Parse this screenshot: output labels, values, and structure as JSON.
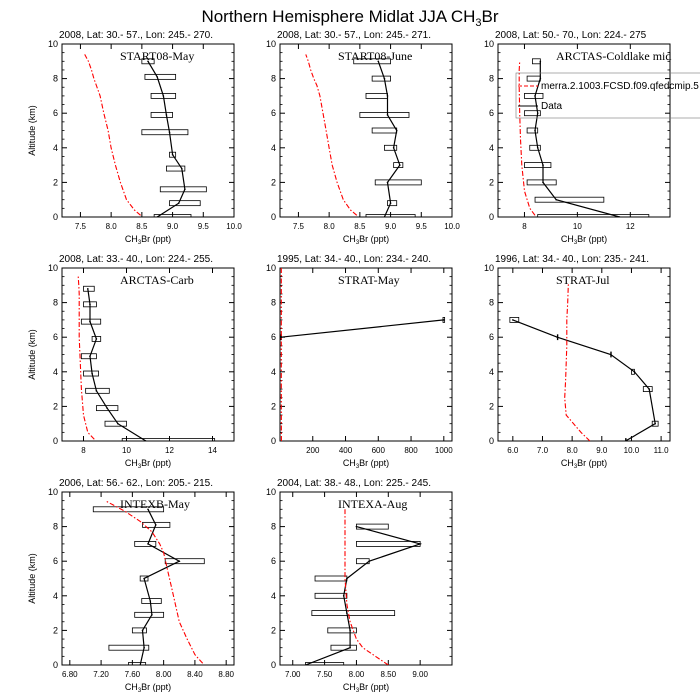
{
  "page": {
    "title_main": "Northern Hemisphere Midlat JJA CH",
    "title_sub": "3",
    "title_end": "Br"
  },
  "colors": {
    "obs": "#000000",
    "model": "#ff0000"
  },
  "common": {
    "ylabel": "Altitude (km)",
    "xlabel_pre": "CH",
    "xlabel_sub": "3",
    "xlabel_post": "Br (ppt)"
  },
  "chart_data": [
    {
      "type": "line",
      "header": "2008, Lat:  30.- 57., Lon: 245.- 270.",
      "inset_title": "START08-May",
      "xlim": [
        7.2,
        10.0
      ],
      "xticks": [
        7.5,
        8.0,
        8.5,
        9.0,
        9.5,
        10.0
      ],
      "xtick_labels": [
        "7.5",
        "8.0",
        "8.5",
        "9.0",
        "9.5",
        "10.0"
      ],
      "ylim": [
        0,
        10
      ],
      "yticks": [
        0,
        2,
        4,
        6,
        8,
        10
      ],
      "model": {
        "x": [
          8.48,
          8.38,
          8.25,
          8.15,
          8.07,
          8.0,
          7.95,
          7.88,
          7.82,
          7.76,
          7.72,
          7.68,
          7.63,
          7.57
        ],
        "y": [
          0.1,
          0.4,
          1.0,
          2.0,
          3.0,
          4.0,
          5.0,
          6.0,
          7.0,
          7.6,
          8.0,
          8.5,
          9.0,
          9.4
        ]
      },
      "obs": {
        "alt": [
          0,
          0.8,
          1.6,
          2.8,
          3.6,
          4.9,
          5.9,
          7.0,
          8.1,
          9.0
        ],
        "mean": [
          8.75,
          9.1,
          9.2,
          9.15,
          9.0,
          8.95,
          8.9,
          8.85,
          8.75,
          8.6
        ],
        "lo": [
          8.7,
          8.95,
          8.8,
          8.9,
          8.95,
          8.5,
          8.65,
          8.65,
          8.55,
          8.5
        ],
        "hi": [
          9.3,
          9.45,
          9.55,
          9.2,
          9.05,
          9.25,
          9.0,
          9.05,
          9.05,
          8.7
        ]
      }
    },
    {
      "type": "line",
      "header": "2008, Lat:  30.- 57., Lon: 245.- 271.",
      "inset_title": "START08-June",
      "xlim": [
        7.2,
        10.0
      ],
      "xticks": [
        7.5,
        8.0,
        8.5,
        9.0,
        9.5,
        10.0
      ],
      "xtick_labels": [
        "7.5",
        "8.0",
        "8.5",
        "9.0",
        "9.5",
        "10.0"
      ],
      "ylim": [
        0,
        10
      ],
      "yticks": [
        0,
        2,
        4,
        6,
        8,
        10
      ],
      "model": {
        "x": [
          8.45,
          8.35,
          8.23,
          8.13,
          8.05,
          8.0,
          7.95,
          7.9,
          7.85,
          7.8,
          7.75,
          7.7,
          7.66,
          7.62
        ],
        "y": [
          0.1,
          0.4,
          1.0,
          2.0,
          3.0,
          4.0,
          5.0,
          6.0,
          7.0,
          7.6,
          8.0,
          8.5,
          9.0,
          9.4
        ]
      },
      "obs": {
        "alt": [
          0,
          0.8,
          2.0,
          3.0,
          4.0,
          5.0,
          5.9,
          7.0,
          8.0,
          9.0
        ],
        "mean": [
          8.9,
          9.0,
          8.95,
          9.15,
          9.05,
          9.1,
          8.95,
          8.95,
          8.9,
          8.8
        ],
        "lo": [
          8.6,
          8.95,
          8.75,
          9.05,
          8.9,
          8.7,
          8.5,
          8.6,
          8.7,
          8.4
        ],
        "hi": [
          9.4,
          9.1,
          9.5,
          9.2,
          9.1,
          9.1,
          9.3,
          8.95,
          9.0,
          9.0
        ]
      }
    },
    {
      "type": "line",
      "header": "2008, Lat:  50.- 70., Lon: 224.- 275",
      "inset_title": "ARCTAS-Coldlake mid",
      "xlim": [
        7.0,
        13.5
      ],
      "xticks": [
        8,
        10,
        12
      ],
      "xtick_labels": [
        "8",
        "10",
        "12"
      ],
      "ylim": [
        0,
        10
      ],
      "yticks": [
        0,
        2,
        4,
        6,
        8,
        10
      ],
      "legend": {
        "model_label": "merra.2.1003.FCSD.f09.qfedcmip.5",
        "obs_label": "Data"
      },
      "model": {
        "x": [
          8.4,
          8.2,
          8.0,
          7.9,
          7.85,
          7.82,
          7.8,
          7.8,
          7.8,
          7.82
        ],
        "y": [
          0.1,
          0.5,
          1.5,
          3.0,
          4.5,
          6.0,
          7.5,
          8.0,
          8.5,
          9.0
        ]
      },
      "obs": {
        "alt": [
          0,
          1,
          2,
          3,
          4,
          5,
          6,
          7,
          8,
          9
        ],
        "mean": [
          11.6,
          9.2,
          8.7,
          8.7,
          8.5,
          8.4,
          8.5,
          8.4,
          8.6,
          8.6
        ],
        "lo": [
          8.5,
          8.4,
          8.1,
          8.0,
          8.2,
          8.1,
          8.0,
          8.0,
          8.1,
          8.3
        ],
        "hi": [
          12.7,
          11.0,
          9.2,
          9.0,
          8.6,
          8.5,
          8.6,
          8.7,
          8.6,
          8.6
        ]
      }
    },
    {
      "type": "line",
      "header": "2008, Lat:  33.- 40., Lon: 224.- 255.",
      "inset_title": "ARCTAS-Carb",
      "xlim": [
        7.0,
        15.0
      ],
      "xticks": [
        8,
        10,
        12,
        14
      ],
      "xtick_labels": [
        "8",
        "10",
        "12",
        "14"
      ],
      "ylim": [
        0,
        10
      ],
      "yticks": [
        0,
        2,
        4,
        6,
        8,
        10
      ],
      "model": {
        "x": [
          8.5,
          8.2,
          8.0,
          7.9,
          7.85,
          7.8,
          7.8,
          7.8,
          7.78,
          7.75
        ],
        "y": [
          0.1,
          0.5,
          1.5,
          3.0,
          4.5,
          6.0,
          7.5,
          8.5,
          9.0,
          9.6
        ]
      },
      "obs": {
        "alt": [
          0,
          1,
          1.9,
          2.9,
          3.9,
          4.9,
          5.9,
          6.9,
          7.9,
          8.8
        ],
        "mean": [
          10.9,
          9.6,
          9.1,
          8.6,
          8.4,
          8.3,
          8.6,
          8.3,
          8.3,
          8.2
        ],
        "lo": [
          9.8,
          9.0,
          8.6,
          8.1,
          8.0,
          7.9,
          8.4,
          7.9,
          8.0,
          8.0
        ],
        "hi": [
          14.1,
          10.0,
          9.6,
          9.2,
          8.7,
          8.6,
          8.8,
          8.8,
          8.6,
          8.5
        ]
      }
    },
    {
      "type": "line",
      "header": "1995, Lat:  34.- 40., Lon: 234.- 240.",
      "inset_title": "STRAT-May",
      "xlim": [
        0,
        1050
      ],
      "xticks": [
        200,
        400,
        600,
        800,
        1000
      ],
      "xtick_labels": [
        "200",
        "400",
        "600",
        "800",
        "1000"
      ],
      "ylim": [
        0,
        10
      ],
      "yticks": [
        0,
        2,
        4,
        6,
        8,
        10
      ],
      "model": {
        "x": [
          8.5,
          8.0,
          7.9,
          7.8,
          7.8,
          7.8
        ],
        "y": [
          0.0,
          2.0,
          4.0,
          6.0,
          8.0,
          10.0
        ]
      },
      "obs": {
        "alt": [
          6.0,
          7.0
        ],
        "mean": [
          5,
          1000
        ],
        "lo": [
          5,
          995
        ],
        "hi": [
          5,
          1005
        ]
      }
    },
    {
      "type": "line",
      "header": "1996, Lat:  34.- 40., Lon: 235.- 241.",
      "inset_title": "STRAT-Jul",
      "xlim": [
        5.5,
        11.3
      ],
      "xticks": [
        6.0,
        7.0,
        8.0,
        9.0,
        10.0,
        11.0
      ],
      "xtick_labels": [
        "6.0",
        "7.0",
        "8.0",
        "9.0",
        "10.0",
        "11.0"
      ],
      "ylim": [
        0,
        10
      ],
      "yticks": [
        0,
        2,
        4,
        6,
        8,
        10
      ],
      "model": {
        "x": [
          8.6,
          8.3,
          7.8,
          7.75,
          7.78,
          7.8,
          7.82,
          7.82,
          7.82,
          7.85,
          7.87,
          7.88
        ],
        "y": [
          0.0,
          0.5,
          1.5,
          2.5,
          3.5,
          4.5,
          5.5,
          6.0,
          7.0,
          8.0,
          9.0,
          9.1
        ]
      },
      "obs": {
        "alt": [
          0,
          1.0,
          3.0,
          4.0,
          5.0,
          6.0,
          7.0
        ],
        "mean": [
          9.8,
          10.8,
          10.6,
          10.1,
          9.3,
          7.5,
          6.0
        ],
        "lo": [
          9.8,
          10.7,
          10.4,
          10.0,
          9.3,
          7.5,
          5.9
        ],
        "hi": [
          9.8,
          10.9,
          10.7,
          10.1,
          9.3,
          7.5,
          6.2
        ]
      }
    },
    {
      "type": "line",
      "header": "2006, Lat:  56.- 62., Lon: 205.- 215.",
      "inset_title": "INTEXB-May",
      "xlim": [
        6.7,
        8.9
      ],
      "xticks": [
        6.8,
        7.2,
        7.6,
        8.0,
        8.4,
        8.8
      ],
      "xtick_labels": [
        "6.80",
        "7.20",
        "7.60",
        "8.00",
        "8.40",
        "8.80"
      ],
      "ylim": [
        0,
        10
      ],
      "yticks": [
        0,
        2,
        4,
        6,
        8,
        10
      ],
      "model": {
        "x": [
          8.5,
          8.4,
          8.3,
          8.2,
          8.15,
          8.1,
          8.05,
          8.0,
          7.95,
          7.85,
          7.7,
          7.5,
          7.25
        ],
        "y": [
          0.1,
          0.6,
          1.5,
          2.5,
          3.5,
          4.5,
          5.5,
          6.5,
          7.0,
          7.7,
          8.3,
          8.9,
          9.5
        ]
      },
      "obs": {
        "alt": [
          0,
          1.0,
          2.0,
          2.9,
          3.7,
          5.0,
          6.0,
          7.0,
          8.1,
          9.0
        ],
        "mean": [
          7.7,
          7.75,
          7.73,
          7.85,
          7.83,
          7.75,
          8.2,
          7.8,
          7.9,
          7.8
        ],
        "lo": [
          7.55,
          7.3,
          7.6,
          7.63,
          7.72,
          7.7,
          8.02,
          7.63,
          7.73,
          7.1
        ],
        "hi": [
          7.77,
          7.81,
          7.78,
          8.0,
          7.97,
          7.8,
          8.52,
          7.9,
          8.08,
          8.0
        ]
      }
    },
    {
      "type": "line",
      "header": "2004, Lat:  38.- 48., Lon: 225.- 245.",
      "inset_title": "INTEXA-Aug",
      "xlim": [
        6.8,
        9.5
      ],
      "xticks": [
        7.0,
        7.5,
        8.0,
        8.5,
        9.0
      ],
      "xtick_labels": [
        "7.00",
        "7.50",
        "8.00",
        "8.50",
        "9.00"
      ],
      "ylim": [
        0,
        10
      ],
      "yticks": [
        0,
        2,
        4,
        6,
        8,
        10
      ],
      "model": {
        "x": [
          8.5,
          8.3,
          8.1,
          8.0,
          7.9,
          7.85,
          7.82,
          7.82,
          7.82,
          7.82,
          7.82
        ],
        "y": [
          0.0,
          0.5,
          1.0,
          1.5,
          2.5,
          3.5,
          5.0,
          6.5,
          7.5,
          8.5,
          9.0
        ]
      },
      "obs": {
        "alt": [
          0,
          1.0,
          2.0,
          3.0,
          4.0,
          5.0,
          6.0,
          7.0,
          8.0
        ],
        "mean": [
          7.2,
          7.9,
          7.9,
          7.85,
          7.8,
          7.85,
          8.2,
          9.0,
          8.0
        ],
        "lo": [
          7.2,
          7.6,
          7.55,
          7.3,
          7.35,
          7.35,
          8.0,
          8.0,
          8.0
        ],
        "hi": [
          7.8,
          8.0,
          8.0,
          8.6,
          7.85,
          7.85,
          8.2,
          9.0,
          8.5
        ]
      }
    }
  ]
}
